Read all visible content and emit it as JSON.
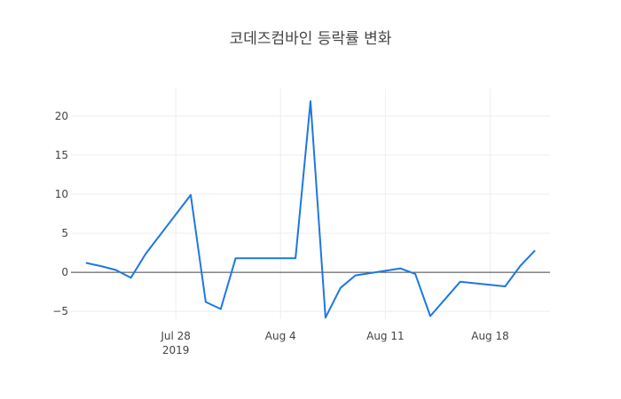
{
  "chart_data": {
    "type": "line",
    "title": "코데즈컴바인 등락률 변화",
    "xlabel": "",
    "ylabel": "",
    "grid": true,
    "legend": "none",
    "x_range": [
      "2019-07-21",
      "2019-08-22"
    ],
    "ylim": [
      -6.0,
      23.5
    ],
    "yticks": [
      -5,
      0,
      5,
      10,
      15,
      20
    ],
    "ytick_labels": [
      "−5",
      "0",
      "5",
      "10",
      "15",
      "20"
    ],
    "xticks": [
      {
        "date": "2019-07-28",
        "label": "Jul 28",
        "sublabel": "2019"
      },
      {
        "date": "2019-08-04",
        "label": "Aug 4",
        "sublabel": ""
      },
      {
        "date": "2019-08-11",
        "label": "Aug 11",
        "sublabel": ""
      },
      {
        "date": "2019-08-18",
        "label": "Aug 18",
        "sublabel": ""
      }
    ],
    "series": [
      {
        "color": "#1f77e0",
        "x": [
          "2019-07-22",
          "2019-07-23",
          "2019-07-24",
          "2019-07-25",
          "2019-07-26",
          "2019-07-29",
          "2019-07-30",
          "2019-07-31",
          "2019-08-01",
          "2019-08-02",
          "2019-08-05",
          "2019-08-06",
          "2019-08-07",
          "2019-08-08",
          "2019-08-09",
          "2019-08-12",
          "2019-08-13",
          "2019-08-14",
          "2019-08-16",
          "2019-08-19",
          "2019-08-20",
          "2019-08-21"
        ],
        "y": [
          1.2,
          0.8,
          0.3,
          -0.7,
          2.4,
          9.9,
          -3.8,
          -4.7,
          1.8,
          1.8,
          1.8,
          21.9,
          -5.8,
          -2.0,
          -0.4,
          0.5,
          -0.2,
          -5.6,
          -1.2,
          -1.8,
          0.8,
          2.8
        ]
      }
    ]
  }
}
